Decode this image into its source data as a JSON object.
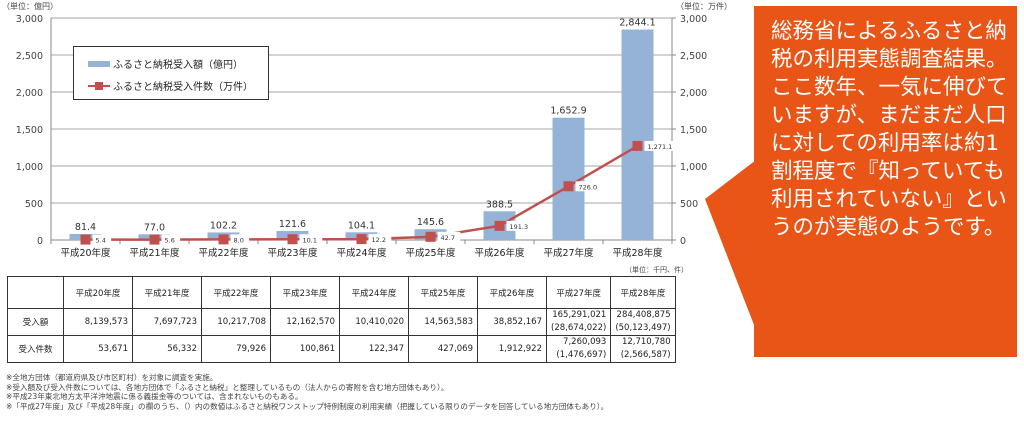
{
  "chart_data": {
    "type": "bar+line",
    "title": "",
    "categories": [
      "平成20年度",
      "平成21年度",
      "平成22年度",
      "平成23年度",
      "平成24年度",
      "平成25年度",
      "平成26年度",
      "平成27年度",
      "平成28年度"
    ],
    "series": [
      {
        "name": "ふるさと納税受入額（億円）",
        "type": "bar",
        "axis": "left",
        "color": "#95b3d7",
        "values": [
          81.4,
          77.0,
          102.2,
          121.6,
          104.1,
          145.6,
          388.5,
          1652.9,
          2844.1
        ],
        "labels": [
          "81.4",
          "77.0",
          "102.2",
          "121.6",
          "104.1",
          "145.6",
          "388.5",
          "1,652.9",
          "2,844.1"
        ]
      },
      {
        "name": "ふるさと納税受入件数（万件）",
        "type": "line",
        "axis": "right",
        "color": "#c0504d",
        "values": [
          5.4,
          5.6,
          8.0,
          10.1,
          12.2,
          42.7,
          191.3,
          726.0,
          1271.1
        ],
        "labels": [
          "5.4",
          "5.6",
          "8.0",
          "10.1",
          "12.2",
          "42.7",
          "191.3",
          "726.0",
          "1,271.1"
        ]
      }
    ],
    "ylabel": "（単位：億円）",
    "y2label": "（単位：万件）",
    "ylim": [
      0,
      3000
    ],
    "y2lim": [
      0,
      3000
    ],
    "yticks": [
      "3,000",
      "2,500",
      "2,000",
      "1,500",
      "1,000",
      "500",
      "0"
    ],
    "y2ticks": [
      "3,000",
      "2,500",
      "2,000",
      "1,500",
      "1,000",
      "500",
      "0"
    ],
    "grid": true,
    "legend_position": "upper-left"
  },
  "table": {
    "unit": "（単位：千円、件）",
    "headers": [
      "",
      "平成20年度",
      "平成21年度",
      "平成22年度",
      "平成23年度",
      "平成24年度",
      "平成25年度",
      "平成26年度",
      "平成27年度",
      "平成28年度"
    ],
    "rows": [
      {
        "label": "受入額",
        "cells": [
          "8,139,573",
          "7,697,723",
          "10,217,708",
          "12,162,570",
          "10,410,020",
          "14,563,583",
          "38,852,167",
          "165,291,021",
          "284,408,875"
        ],
        "sub": [
          "",
          "",
          "",
          "",
          "",
          "",
          "",
          "(28,674,022)",
          "(50,123,497)"
        ]
      },
      {
        "label": "受入件数",
        "cells": [
          "53,671",
          "56,332",
          "79,926",
          "100,861",
          "122,347",
          "427,069",
          "1,912,922",
          "7,260,093",
          "12,710,780"
        ],
        "sub": [
          "",
          "",
          "",
          "",
          "",
          "",
          "",
          "(1,476,697)",
          "(2,566,587)"
        ]
      }
    ]
  },
  "notes": [
    "※全地方団体（都道府県及び市区町村）を対象に調査を実施。",
    "※受入額及び受入件数については、各地方団体で「ふるさと納税」と整理しているもの（法人からの寄附を含む地方団体もあり）。",
    "※平成23年東北地方太平洋沖地震に係る義援金等のついては、含まれないものもある。",
    "※「平成27年度」及び「平成28年度」の欄のうち、（）内の数値はふるさと納税ワンストップ特例制度の利用実績（把握している限りのデータを回答している地方団体もあり）。"
  ],
  "callout": {
    "color": "#e95517",
    "text": "総務省によるふるさと納税の利用実態調査結果。\nここ数年、一気に伸びていますが、まだまだ人口に対しての利用率は約1割程度で『知っていても利用されていない』というのが実態のようです。"
  }
}
